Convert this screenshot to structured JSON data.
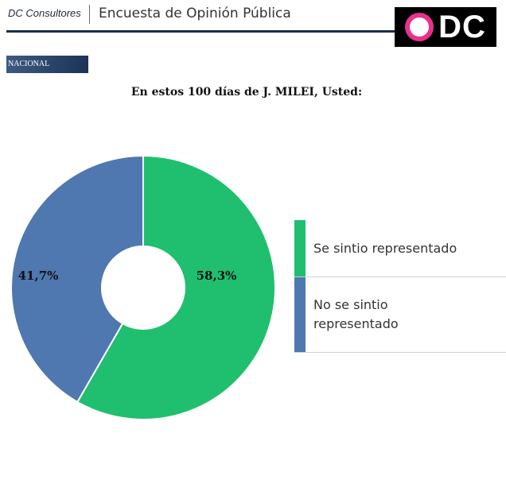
{
  "header": {
    "brand": "DC Consultores",
    "title": "Encuesta de Opinión Pública",
    "logo_text": "DC",
    "logo_ring_color": "#e8318d"
  },
  "section_label": "NACIONAL",
  "chart_data": {
    "type": "pie",
    "title": "En estos 100 días de J. MILEI, Usted:",
    "categories": [
      "Se sintio representado",
      "No se sintio representado"
    ],
    "values": [
      58.3,
      41.7
    ],
    "labels": [
      "58,3%",
      "41,7%"
    ],
    "colors": [
      "#1fbf6f",
      "#4f77b0"
    ],
    "legend": {
      "position": "right",
      "entries": [
        "Se sintio representado",
        "No se sintio\nrepresentado"
      ]
    }
  }
}
